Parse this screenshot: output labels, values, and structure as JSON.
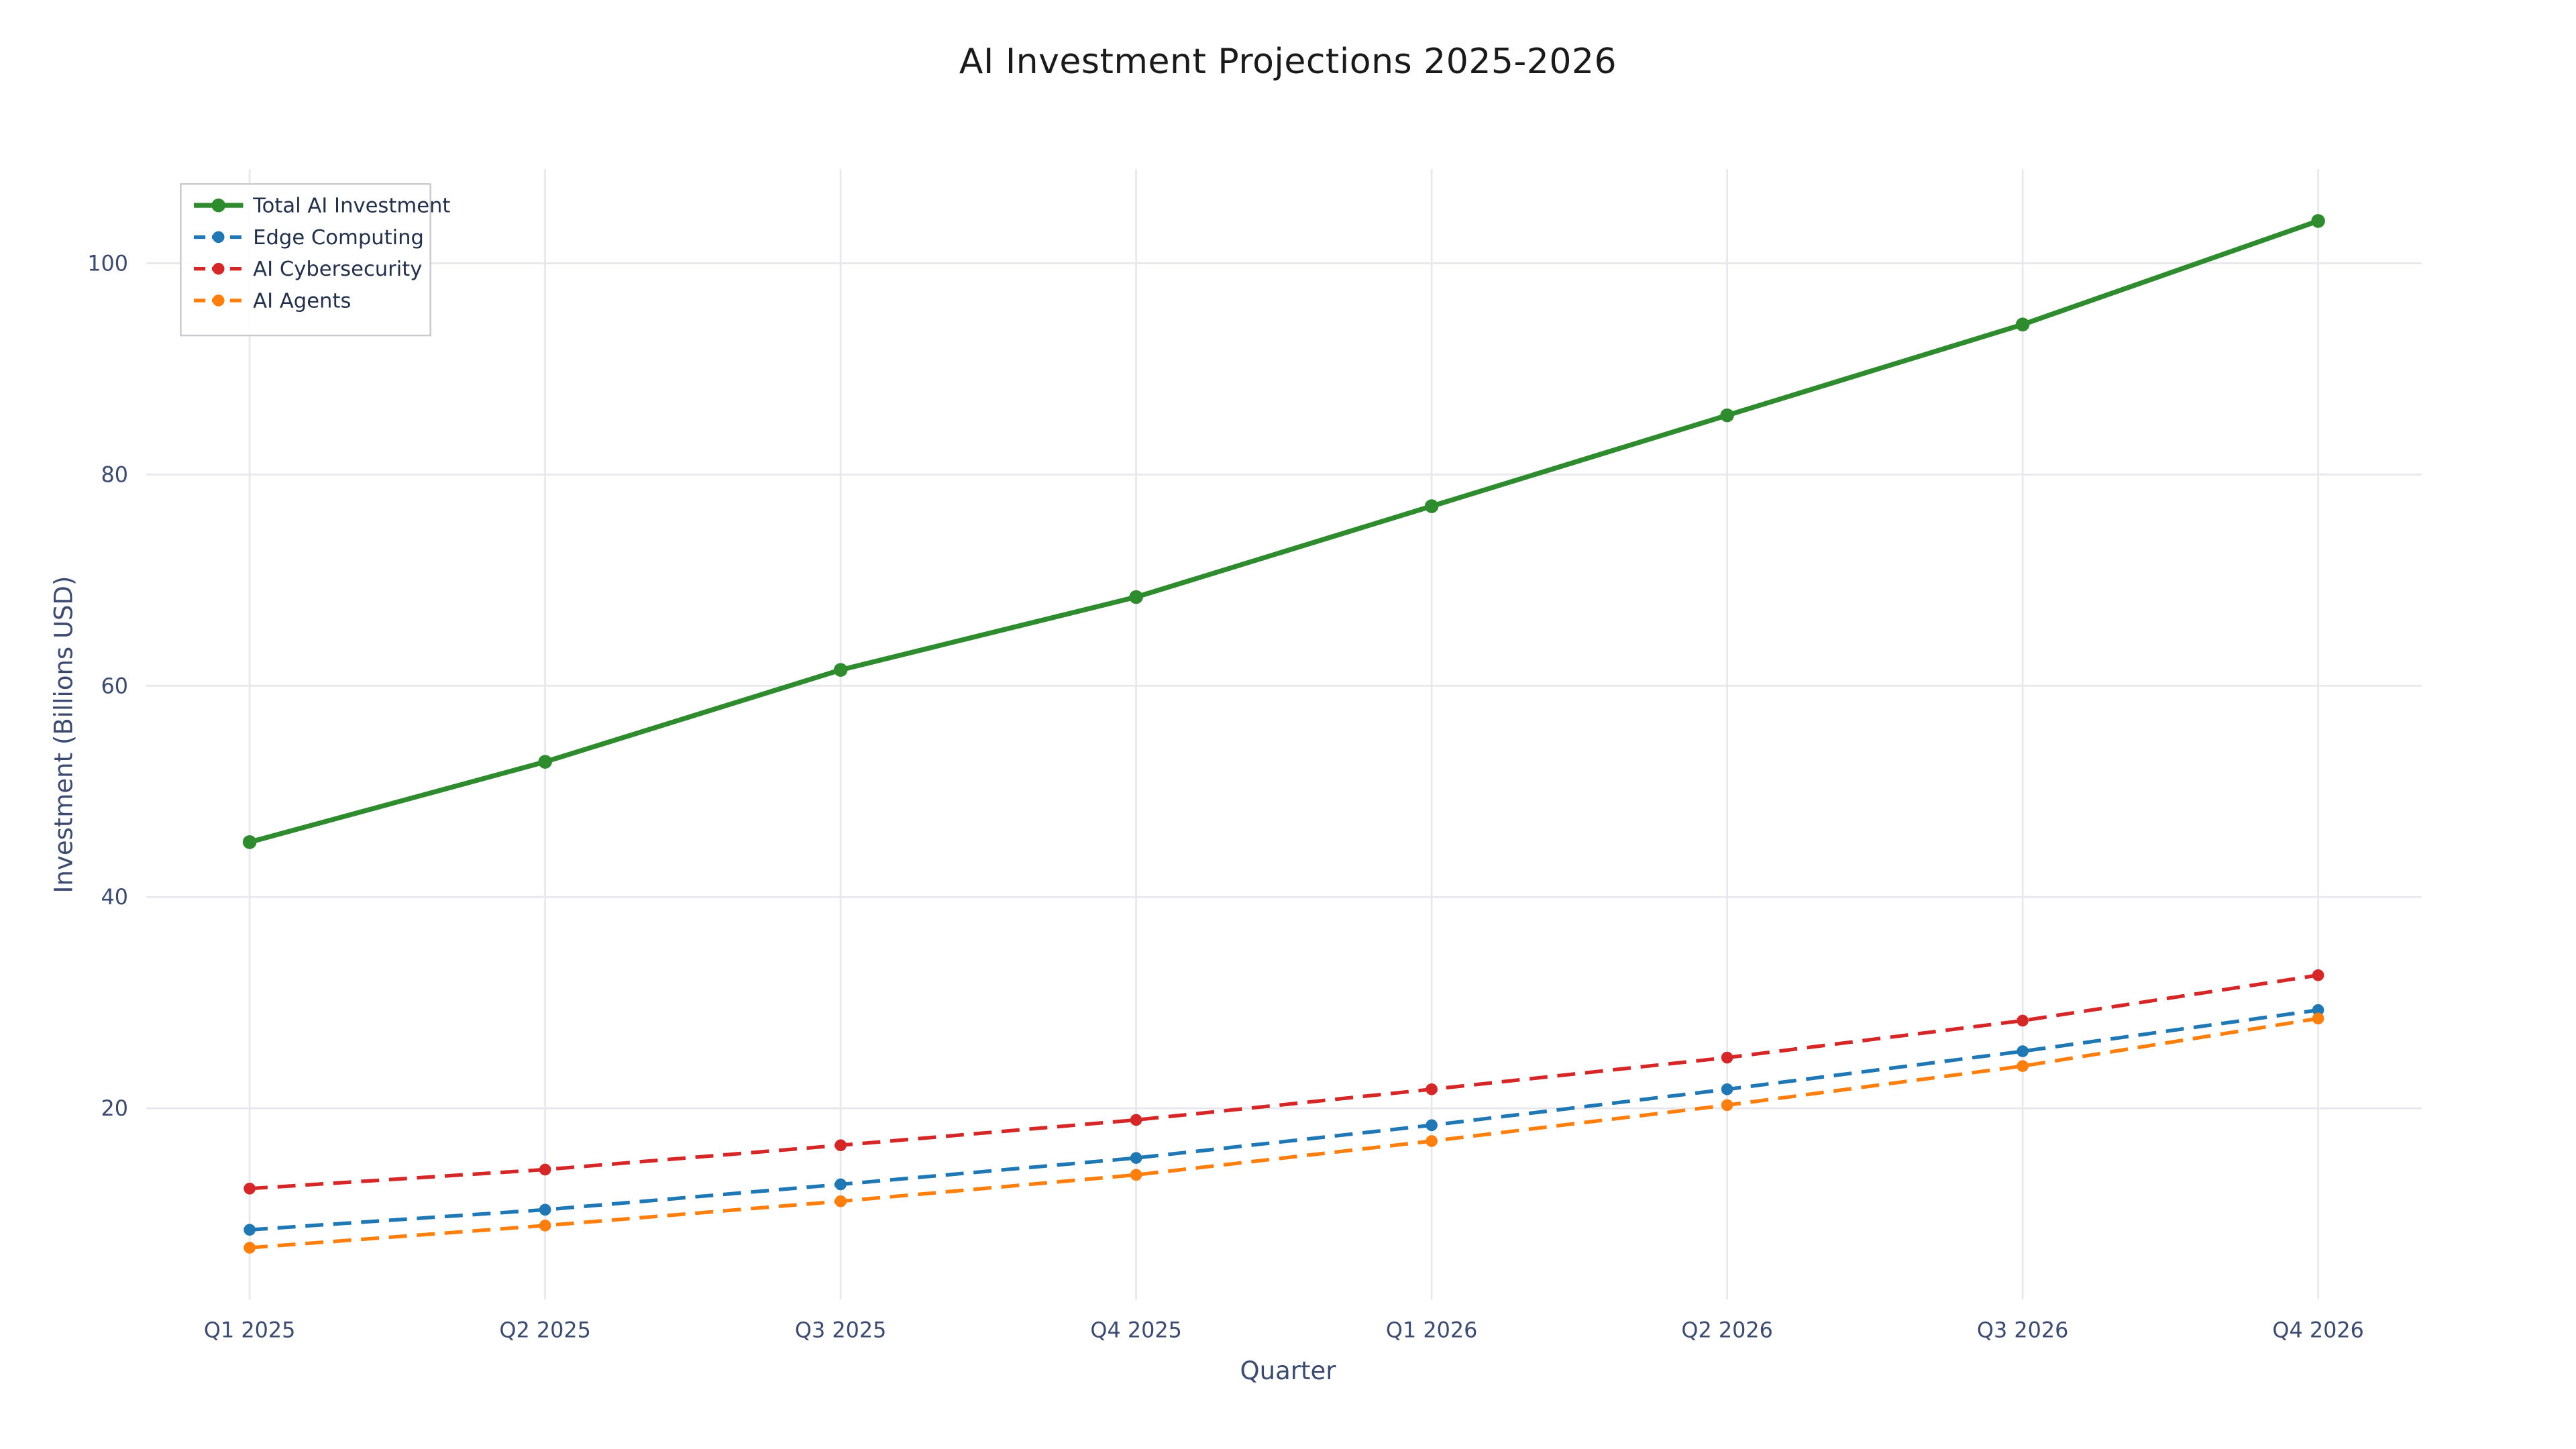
{
  "chart_data": {
    "type": "line",
    "title": "AI Investment Projections 2025-2026",
    "xlabel": "Quarter",
    "ylabel": "Investment (Billions USD)",
    "categories": [
      "Q1 2025",
      "Q2 2025",
      "Q3 2025",
      "Q4 2025",
      "Q1 2026",
      "Q2 2026",
      "Q3 2026",
      "Q4 2026"
    ],
    "yticks": [
      20,
      40,
      60,
      80,
      100
    ],
    "ylim": [
      1.9,
      108.9
    ],
    "grid": true,
    "legend_position": "upper-left",
    "background_color": "#ffffff",
    "grid_color": "#e7e7ec",
    "tick_text_color": "#3b4a6e",
    "legend_text_color": "#22304a",
    "title_color": "#1a1a1a",
    "series": [
      {
        "name": "Total AI Investment",
        "color": "#2e8b2e",
        "style": "solid",
        "line_width": 3,
        "marker_radius": 4.2,
        "values": [
          45.2,
          52.8,
          61.5,
          68.4,
          77.0,
          85.6,
          94.2,
          104.0
        ]
      },
      {
        "name": "Edge Computing",
        "color": "#1f77b4",
        "style": "dashed",
        "line_width": 2.2,
        "marker_radius": 3.6,
        "values": [
          8.5,
          10.4,
          12.8,
          15.3,
          18.4,
          21.8,
          25.4,
          29.3
        ]
      },
      {
        "name": "AI Cybersecurity",
        "color": "#d62728",
        "style": "dashed",
        "line_width": 2.2,
        "marker_radius": 3.6,
        "values": [
          12.4,
          14.2,
          16.5,
          18.9,
          21.8,
          24.8,
          28.3,
          32.6
        ]
      },
      {
        "name": "AI Agents",
        "color": "#ff7f0e",
        "style": "dashed",
        "line_width": 2.2,
        "marker_radius": 3.6,
        "values": [
          6.8,
          8.9,
          11.2,
          13.7,
          16.9,
          20.3,
          24.0,
          28.5
        ]
      }
    ]
  }
}
